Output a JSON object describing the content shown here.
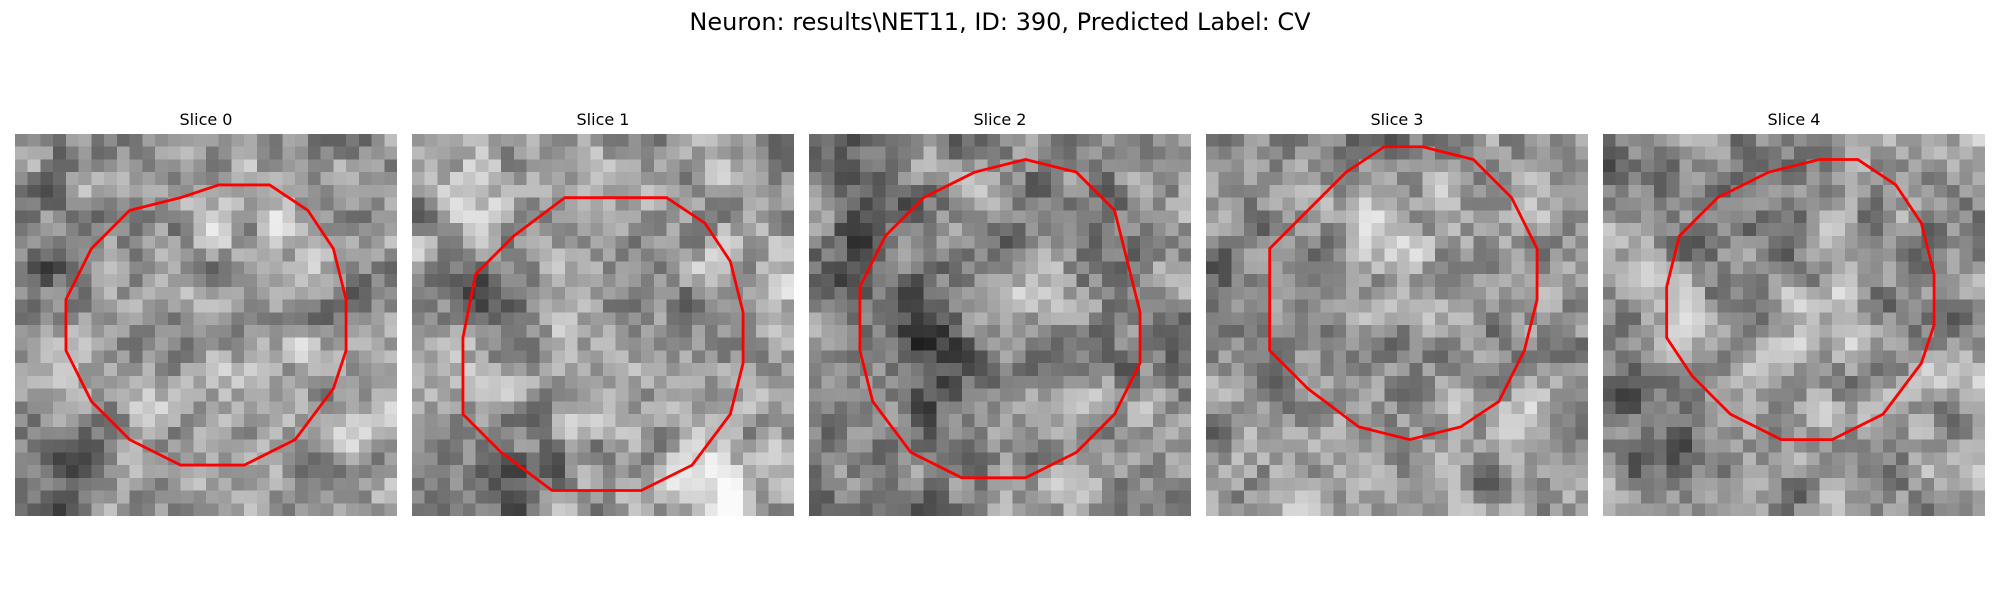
{
  "figure": {
    "title": "Neuron: results\\NET11, ID: 390, Predicted Label: CV"
  },
  "slices": [
    {
      "title": "Slice 0",
      "seed": 11,
      "base": 150,
      "spots": [
        [
          4,
          25,
          70,
          4
        ],
        [
          3,
          10,
          55,
          4
        ],
        [
          26,
          22,
          -25,
          5
        ],
        [
          17,
          5,
          -30,
          4
        ],
        [
          7,
          23,
          -20,
          5
        ]
      ],
      "contour": [
        [
          20,
          4
        ],
        [
          23,
          6
        ],
        [
          25,
          9
        ],
        [
          26,
          13
        ],
        [
          26,
          17
        ],
        [
          25,
          20
        ],
        [
          22,
          24
        ],
        [
          18,
          26
        ],
        [
          13,
          26
        ],
        [
          9,
          24
        ],
        [
          6,
          21
        ],
        [
          4,
          17
        ],
        [
          4,
          13
        ],
        [
          6,
          9
        ],
        [
          9,
          6
        ],
        [
          13,
          5
        ],
        [
          16,
          4
        ]
      ]
    },
    {
      "title": "Slice 1",
      "seed": 23,
      "base": 160,
      "spots": [
        [
          5,
          12,
          70,
          3
        ],
        [
          8,
          27,
          70,
          4
        ],
        [
          16,
          14,
          30,
          3
        ],
        [
          27,
          8,
          -25,
          4
        ],
        [
          23,
          27,
          -30,
          4
        ],
        [
          3,
          3,
          -25,
          3
        ]
      ],
      "contour": [
        [
          20,
          5
        ],
        [
          23,
          7
        ],
        [
          25,
          10
        ],
        [
          26,
          14
        ],
        [
          26,
          18
        ],
        [
          25,
          22
        ],
        [
          22,
          26
        ],
        [
          18,
          28
        ],
        [
          11,
          28
        ],
        [
          7,
          25
        ],
        [
          4,
          22
        ],
        [
          4,
          16
        ],
        [
          5,
          11
        ],
        [
          8,
          8
        ],
        [
          12,
          5
        ],
        [
          16,
          5
        ]
      ]
    },
    {
      "title": "Slice 2",
      "seed": 37,
      "base": 135,
      "spots": [
        [
          4,
          10,
          60,
          4
        ],
        [
          8,
          16,
          50,
          3
        ],
        [
          10,
          20,
          50,
          3
        ],
        [
          17,
          13,
          -20,
          4
        ],
        [
          26,
          23,
          -20,
          4
        ]
      ],
      "contour": [
        [
          17,
          2
        ],
        [
          21,
          3
        ],
        [
          24,
          6
        ],
        [
          25,
          10
        ],
        [
          26,
          14
        ],
        [
          26,
          18
        ],
        [
          24,
          22
        ],
        [
          21,
          25
        ],
        [
          17,
          27
        ],
        [
          12,
          27
        ],
        [
          8,
          25
        ],
        [
          5,
          21
        ],
        [
          4,
          17
        ],
        [
          4,
          12
        ],
        [
          6,
          8
        ],
        [
          9,
          5
        ],
        [
          13,
          3
        ]
      ]
    },
    {
      "title": "Slice 3",
      "seed": 53,
      "base": 150,
      "spots": [
        [
          1,
          12,
          60,
          3
        ],
        [
          27,
          15,
          60,
          2
        ],
        [
          14,
          8,
          -30,
          4
        ],
        [
          18,
          21,
          -15,
          3
        ],
        [
          26,
          23,
          -30,
          4
        ],
        [
          2,
          2,
          -30,
          3
        ]
      ],
      "contour": [
        [
          17,
          1
        ],
        [
          21,
          2
        ],
        [
          24,
          5
        ],
        [
          26,
          9
        ],
        [
          26,
          13
        ],
        [
          25,
          17
        ],
        [
          23,
          21
        ],
        [
          20,
          23
        ],
        [
          16,
          24
        ],
        [
          12,
          23
        ],
        [
          8,
          20
        ],
        [
          5,
          17
        ],
        [
          5,
          13
        ],
        [
          5,
          9
        ],
        [
          8,
          6
        ],
        [
          11,
          3
        ],
        [
          14,
          1
        ]
      ]
    },
    {
      "title": "Slice 4",
      "seed": 71,
      "base": 150,
      "spots": [
        [
          12,
          5,
          60,
          4
        ],
        [
          16,
          14,
          -25,
          5
        ],
        [
          3,
          22,
          60,
          4
        ],
        [
          27,
          20,
          -30,
          4
        ],
        [
          22,
          14,
          40,
          3
        ]
      ],
      "contour": [
        [
          20,
          2
        ],
        [
          23,
          4
        ],
        [
          25,
          7
        ],
        [
          26,
          11
        ],
        [
          26,
          15
        ],
        [
          25,
          18
        ],
        [
          22,
          22
        ],
        [
          18,
          24
        ],
        [
          14,
          24
        ],
        [
          10,
          22
        ],
        [
          7,
          19
        ],
        [
          5,
          16
        ],
        [
          5,
          12
        ],
        [
          6,
          8
        ],
        [
          9,
          5
        ],
        [
          13,
          3
        ],
        [
          17,
          2
        ]
      ]
    }
  ]
}
